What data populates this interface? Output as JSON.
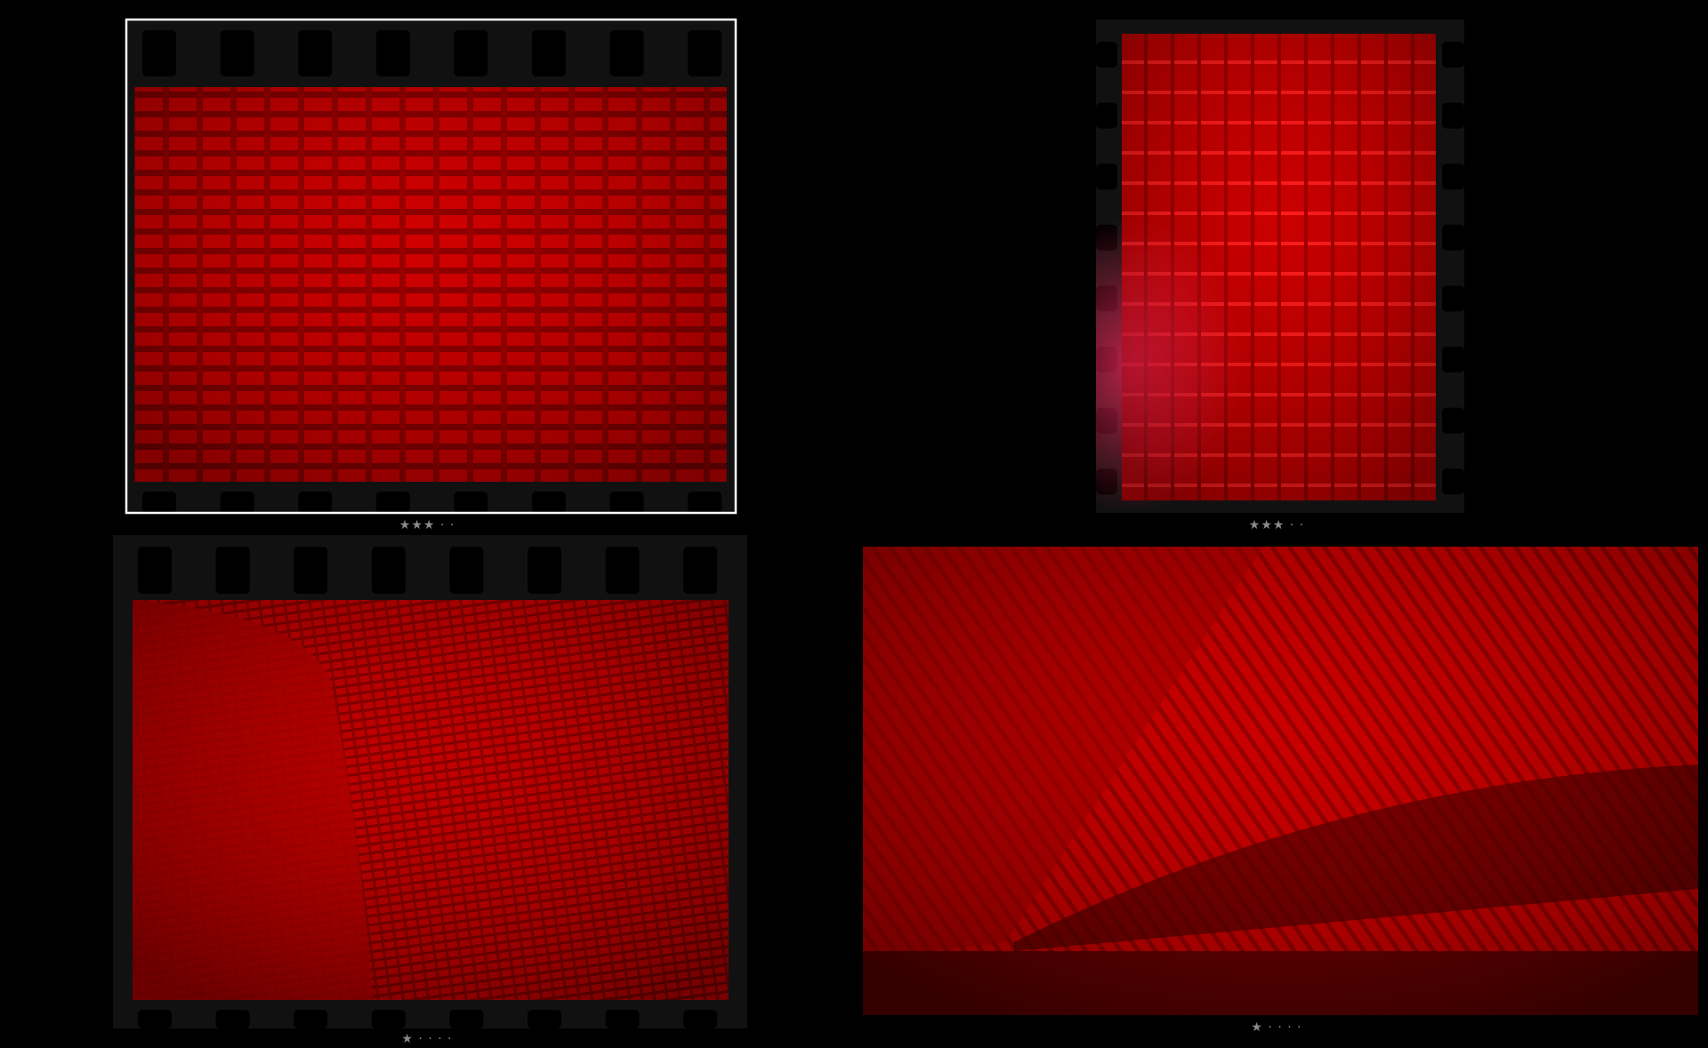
{
  "photos": [
    {
      "rating": "★★★ · ·"
    },
    {
      "rating": "★★★ · ·"
    },
    {
      "rating": "★ · · · ·"
    },
    {
      "rating": "★ · · · ·"
    }
  ]
}
